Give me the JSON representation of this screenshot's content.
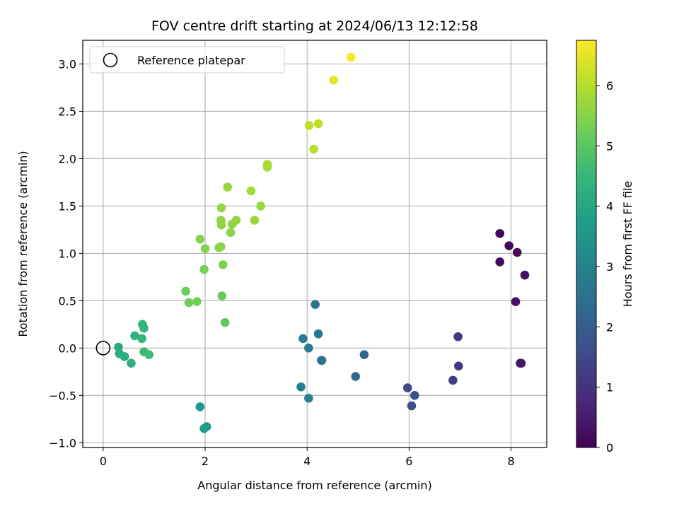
{
  "chart_data": {
    "type": "scatter",
    "title": "FOV centre drift starting at 2024/06/13 12:12:58",
    "xlabel": "Angular distance from reference (arcmin)",
    "ylabel": "Rotation from reference (arcmin)",
    "xlim": [
      -0.4,
      8.7
    ],
    "ylim": [
      -1.05,
      3.25
    ],
    "xticks": [
      "0",
      "2",
      "4",
      "6",
      "8"
    ],
    "xtick_values": [
      0,
      2,
      4,
      6,
      8
    ],
    "yticks": [
      "−1.0",
      "−0.5",
      "0.0",
      "0.5",
      "1.0",
      "1.5",
      "2.0",
      "2.5",
      "3.0"
    ],
    "ytick_values": [
      -1.0,
      -0.5,
      0.0,
      0.5,
      1.0,
      1.5,
      2.0,
      2.5,
      3.0
    ],
    "grid": true,
    "legend": {
      "placement": "top-left",
      "entries": [
        "Reference platepar"
      ]
    },
    "reference_point": {
      "x": 0,
      "y": 0
    },
    "colorbar": {
      "label": "Hours from first FF file",
      "min": 0,
      "max": 6.75,
      "ticks": [
        "0",
        "1",
        "2",
        "3",
        "4",
        "5",
        "6"
      ],
      "tick_values": [
        0,
        1,
        2,
        3,
        4,
        5,
        6
      ],
      "colormap": [
        "#440154",
        "#482878",
        "#3e4989",
        "#31688e",
        "#26828e",
        "#1f9e89",
        "#35b779",
        "#6ece58",
        "#b5de2b",
        "#fde725"
      ]
    },
    "points": [
      {
        "x": 7.78,
        "y": 1.21,
        "h": 0.05
      },
      {
        "x": 7.96,
        "y": 1.08,
        "h": 0.1
      },
      {
        "x": 8.12,
        "y": 1.01,
        "h": 0.15
      },
      {
        "x": 7.78,
        "y": 0.91,
        "h": 0.2
      },
      {
        "x": 8.27,
        "y": 0.77,
        "h": 0.25
      },
      {
        "x": 8.09,
        "y": 0.49,
        "h": 0.3
      },
      {
        "x": 8.18,
        "y": -0.16,
        "h": 0.35
      },
      {
        "x": 8.2,
        "y": -0.16,
        "h": 0.4
      },
      {
        "x": 6.96,
        "y": 0.12,
        "h": 1.1
      },
      {
        "x": 6.97,
        "y": -0.19,
        "h": 1.15
      },
      {
        "x": 6.86,
        "y": -0.34,
        "h": 1.2
      },
      {
        "x": 5.97,
        "y": -0.42,
        "h": 1.6
      },
      {
        "x": 6.11,
        "y": -0.5,
        "h": 1.65
      },
      {
        "x": 6.05,
        "y": -0.61,
        "h": 1.7
      },
      {
        "x": 5.12,
        "y": -0.07,
        "h": 2.2
      },
      {
        "x": 4.95,
        "y": -0.3,
        "h": 2.25
      },
      {
        "x": 4.29,
        "y": -0.13,
        "h": 2.5
      },
      {
        "x": 4.28,
        "y": -0.13,
        "h": 2.55
      },
      {
        "x": 4.22,
        "y": 0.15,
        "h": 2.65
      },
      {
        "x": 4.16,
        "y": 0.46,
        "h": 2.7
      },
      {
        "x": 4.03,
        "y": 0.0,
        "h": 2.8
      },
      {
        "x": 3.92,
        "y": 0.1,
        "h": 2.85
      },
      {
        "x": 3.88,
        "y": -0.41,
        "h": 2.9
      },
      {
        "x": 4.03,
        "y": -0.53,
        "h": 2.95
      },
      {
        "x": 1.9,
        "y": -0.62,
        "h": 3.6
      },
      {
        "x": 2.03,
        "y": -0.83,
        "h": 3.65
      },
      {
        "x": 1.98,
        "y": -0.85,
        "h": 3.7
      },
      {
        "x": 0.3,
        "y": 0.01,
        "h": 4.1
      },
      {
        "x": 0.32,
        "y": -0.06,
        "h": 4.15
      },
      {
        "x": 0.42,
        "y": -0.09,
        "h": 4.2
      },
      {
        "x": 0.55,
        "y": -0.16,
        "h": 4.25
      },
      {
        "x": 0.62,
        "y": 0.13,
        "h": 4.35
      },
      {
        "x": 0.77,
        "y": 0.25,
        "h": 4.4
      },
      {
        "x": 0.8,
        "y": 0.21,
        "h": 4.45
      },
      {
        "x": 0.76,
        "y": 0.1,
        "h": 4.5
      },
      {
        "x": 0.8,
        "y": -0.04,
        "h": 4.55
      },
      {
        "x": 0.9,
        "y": -0.07,
        "h": 4.6
      },
      {
        "x": 2.39,
        "y": 0.27,
        "h": 5.1
      },
      {
        "x": 2.33,
        "y": 0.55,
        "h": 5.15
      },
      {
        "x": 1.62,
        "y": 0.6,
        "h": 5.2
      },
      {
        "x": 1.68,
        "y": 0.48,
        "h": 5.25
      },
      {
        "x": 1.84,
        "y": 0.49,
        "h": 5.3
      },
      {
        "x": 1.98,
        "y": 0.83,
        "h": 5.35
      },
      {
        "x": 2.35,
        "y": 0.88,
        "h": 5.4
      },
      {
        "x": 2.0,
        "y": 1.05,
        "h": 5.45
      },
      {
        "x": 1.9,
        "y": 1.15,
        "h": 5.5
      },
      {
        "x": 2.27,
        "y": 1.06,
        "h": 5.52
      },
      {
        "x": 2.31,
        "y": 1.07,
        "h": 5.54
      },
      {
        "x": 2.5,
        "y": 1.22,
        "h": 5.56
      },
      {
        "x": 2.32,
        "y": 1.3,
        "h": 5.58
      },
      {
        "x": 2.31,
        "y": 1.35,
        "h": 5.6
      },
      {
        "x": 2.53,
        "y": 1.31,
        "h": 5.62
      },
      {
        "x": 2.61,
        "y": 1.35,
        "h": 5.64
      },
      {
        "x": 2.32,
        "y": 1.48,
        "h": 5.66
      },
      {
        "x": 2.44,
        "y": 1.7,
        "h": 5.68
      },
      {
        "x": 2.97,
        "y": 1.35,
        "h": 5.7
      },
      {
        "x": 3.09,
        "y": 1.5,
        "h": 5.72
      },
      {
        "x": 2.9,
        "y": 1.66,
        "h": 5.8
      },
      {
        "x": 3.22,
        "y": 1.91,
        "h": 5.85
      },
      {
        "x": 3.22,
        "y": 1.94,
        "h": 5.88
      },
      {
        "x": 4.13,
        "y": 2.1,
        "h": 6.05
      },
      {
        "x": 4.04,
        "y": 2.35,
        "h": 6.1
      },
      {
        "x": 4.22,
        "y": 2.37,
        "h": 6.12
      },
      {
        "x": 4.52,
        "y": 2.83,
        "h": 6.55
      },
      {
        "x": 4.86,
        "y": 3.07,
        "h": 6.72
      }
    ]
  }
}
